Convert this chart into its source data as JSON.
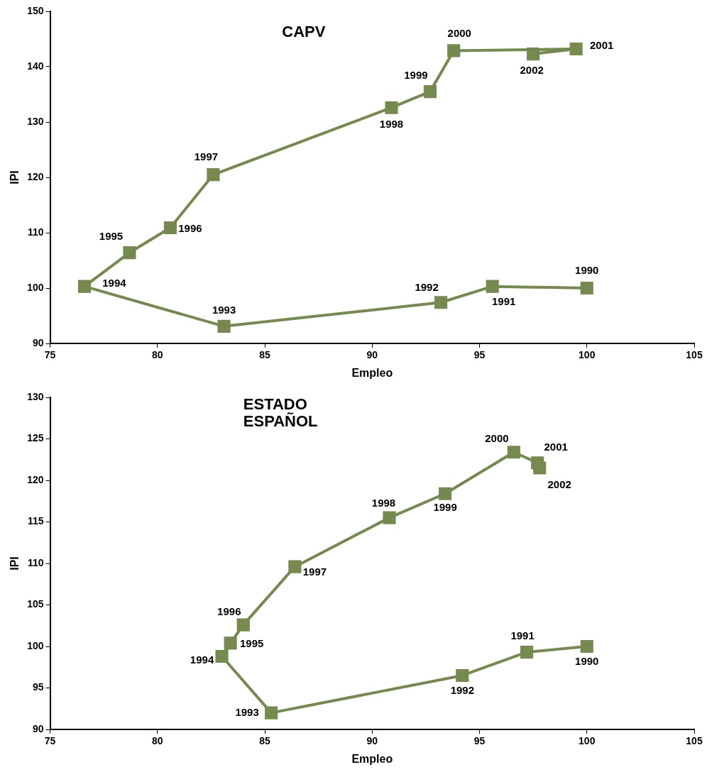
{
  "chart_data": [
    {
      "type": "line",
      "title": "CAPV",
      "xlabel": "Empleo",
      "ylabel": "IPI",
      "xlim": [
        75,
        105
      ],
      "xticks": [
        75,
        80,
        85,
        90,
        95,
        100,
        105
      ],
      "ylim": [
        90,
        150
      ],
      "yticks": [
        90,
        100,
        110,
        120,
        130,
        140,
        150
      ],
      "grid": false,
      "legend": false,
      "marker": "square",
      "line_style": "solid",
      "series": [
        {
          "color": "#76894f",
          "x": [
            100.0,
            95.6,
            93.2,
            83.1,
            76.6,
            78.7,
            80.6,
            82.6,
            90.9,
            92.7,
            93.8,
            99.5,
            97.5
          ],
          "values": [
            100.0,
            100.3,
            97.4,
            93.1,
            100.3,
            106.4,
            110.9,
            120.5,
            132.6,
            135.5,
            142.9,
            143.2,
            142.3
          ]
        }
      ],
      "annotations": [
        {
          "text": "1990",
          "x": 100.0,
          "y": 100.0
        },
        {
          "text": "1991",
          "x": 95.6,
          "y": 100.3
        },
        {
          "text": "1992",
          "x": 93.2,
          "y": 97.4
        },
        {
          "text": "1993",
          "x": 83.1,
          "y": 93.1
        },
        {
          "text": "1994",
          "x": 76.6,
          "y": 100.3
        },
        {
          "text": "1995",
          "x": 78.7,
          "y": 106.4
        },
        {
          "text": "1996",
          "x": 80.6,
          "y": 110.9
        },
        {
          "text": "1997",
          "x": 82.6,
          "y": 120.5
        },
        {
          "text": "1998",
          "x": 90.9,
          "y": 132.6
        },
        {
          "text": "1999",
          "x": 92.7,
          "y": 135.5
        },
        {
          "text": "2000",
          "x": 93.8,
          "y": 142.9
        },
        {
          "text": "2001",
          "x": 99.5,
          "y": 143.2
        },
        {
          "text": "2002",
          "x": 97.5,
          "y": 142.3
        }
      ]
    },
    {
      "type": "line",
      "title": "ESTADO ESPAÑOL",
      "xlabel": "Empleo",
      "ylabel": "IPI",
      "xlim": [
        75,
        105
      ],
      "xticks": [
        75,
        80,
        85,
        90,
        95,
        100,
        105
      ],
      "ylim": [
        90,
        130
      ],
      "yticks": [
        90,
        95,
        100,
        105,
        110,
        115,
        120,
        125,
        130
      ],
      "grid": false,
      "legend": false,
      "marker": "square",
      "line_style": "solid",
      "series": [
        {
          "color": "#76894f",
          "x": [
            100.0,
            97.2,
            94.2,
            85.3,
            83.0,
            83.4,
            84.0,
            86.4,
            90.8,
            93.4,
            96.6,
            97.7,
            97.8
          ],
          "values": [
            100.0,
            99.3,
            96.5,
            92.0,
            98.8,
            100.4,
            102.6,
            109.6,
            115.5,
            118.4,
            123.4,
            122.1,
            121.5
          ]
        }
      ],
      "annotations": [
        {
          "text": "1990",
          "x": 100.0,
          "y": 100.0
        },
        {
          "text": "1991",
          "x": 97.2,
          "y": 99.3
        },
        {
          "text": "1992",
          "x": 94.2,
          "y": 96.5
        },
        {
          "text": "1993",
          "x": 85.3,
          "y": 92.0
        },
        {
          "text": "1994",
          "x": 83.0,
          "y": 98.8
        },
        {
          "text": "1995",
          "x": 83.4,
          "y": 100.4
        },
        {
          "text": "1996",
          "x": 84.0,
          "y": 102.6
        },
        {
          "text": "1997",
          "x": 86.4,
          "y": 109.6
        },
        {
          "text": "1998",
          "x": 90.8,
          "y": 115.5
        },
        {
          "text": "1999",
          "x": 93.4,
          "y": 118.4
        },
        {
          "text": "2000",
          "x": 96.6,
          "y": 123.4
        },
        {
          "text": "2001",
          "x": 97.7,
          "y": 122.1
        },
        {
          "text": "2002",
          "x": 97.8,
          "y": 121.5
        }
      ]
    }
  ]
}
